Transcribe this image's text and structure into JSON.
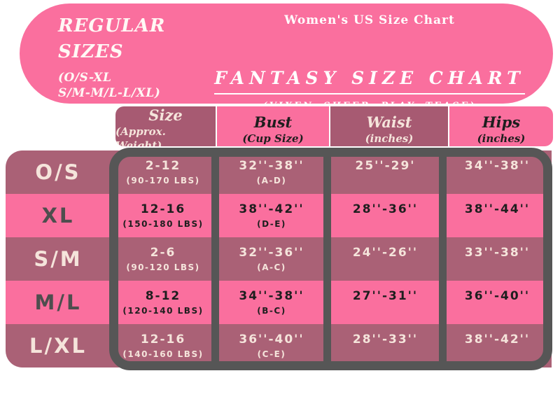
{
  "banner": {
    "bg_color": "#FA6F9E",
    "left": {
      "title_line1": "REGULAR",
      "title_line2": "SIZES",
      "sub_line1": "(O/S-XL",
      "sub_line2": "S/M-M/L-L/XL)"
    },
    "center": {
      "top_title": "Women's US Size Chart",
      "main_title": "FANTASY SIZE CHART",
      "subtitle": "(VIXEN, SHEER, PLAY, TEASE)"
    }
  },
  "table": {
    "header": [
      {
        "label": "Size",
        "sub": "(Approx. Weight)"
      },
      {
        "label": "Bust",
        "sub": "(Cup Size)"
      },
      {
        "label": "Waist",
        "sub": "(inches)"
      },
      {
        "label": "Hips",
        "sub": "(inches)"
      }
    ],
    "rows": [
      {
        "size_label": "O/S",
        "cells": [
          {
            "main": "2-12",
            "sub": "(90-170 LBS)"
          },
          {
            "main": "32''-38''",
            "sub": "(A-D)"
          },
          {
            "main": "25''-29'"
          },
          {
            "main": "34''-38''"
          }
        ]
      },
      {
        "size_label": "XL",
        "cells": [
          {
            "main": "12-16",
            "sub": "(150-180 LBS)"
          },
          {
            "main": "38''-42''",
            "sub": "(D-E)"
          },
          {
            "main": "28''-36''"
          },
          {
            "main": "38''-44''"
          }
        ]
      },
      {
        "size_label": "S/M",
        "cells": [
          {
            "main": "2-6",
            "sub": "(90-120 LBS)"
          },
          {
            "main": "32''-36''",
            "sub": "(A-C)"
          },
          {
            "main": "24''-26''"
          },
          {
            "main": "33''-38''"
          }
        ]
      },
      {
        "size_label": "M/L",
        "cells": [
          {
            "main": "8-12",
            "sub": "(120-140 LBS)"
          },
          {
            "main": "34''-38''",
            "sub": "(B-C)"
          },
          {
            "main": "27''-31''"
          },
          {
            "main": "36''-40''"
          }
        ]
      },
      {
        "size_label": "L/XL",
        "cells": [
          {
            "main": "12-16",
            "sub": "(140-160 LBS)"
          },
          {
            "main": "36''-40''",
            "sub": "(C-E)"
          },
          {
            "main": "28''-33''"
          },
          {
            "main": "38''-42''"
          }
        ]
      }
    ]
  },
  "colors": {
    "pink": "#FA6F9E",
    "header_mauve": "#A75A72",
    "row_mauve": "#AA6176",
    "border_gray": "#565656",
    "cream_text": "#F5E4DB",
    "dark_text": "#1E1E1E"
  },
  "chart_data": {
    "type": "table",
    "title": "FANTASY SIZE CHART",
    "subtitle": "(VIXEN, SHEER, PLAY, TEASE)",
    "header_note": "Women's US Size Chart",
    "regular_sizes_note": "REGULAR SIZES (O/S-XL S/M-M/L-L/XL)",
    "columns": [
      "Size",
      "Size (Approx. Weight)",
      "Bust (Cup Size)",
      "Waist (inches)",
      "Hips (inches)"
    ],
    "rows": [
      [
        "O/S",
        "2-12 (90-170 LBS)",
        "32''-38'' (A-D)",
        "25''-29'",
        "34''-38''"
      ],
      [
        "XL",
        "12-16 (150-180 LBS)",
        "38''-42'' (D-E)",
        "28''-36''",
        "38''-44''"
      ],
      [
        "S/M",
        "2-6 (90-120 LBS)",
        "32''-36'' (A-C)",
        "24''-26''",
        "33''-38''"
      ],
      [
        "M/L",
        "8-12 (120-140 LBS)",
        "34''-38'' (B-C)",
        "27''-31''",
        "36''-40''"
      ],
      [
        "L/XL",
        "12-16 (140-160 LBS)",
        "36''-40'' (C-E)",
        "28''-33''",
        "38''-42''"
      ]
    ]
  }
}
